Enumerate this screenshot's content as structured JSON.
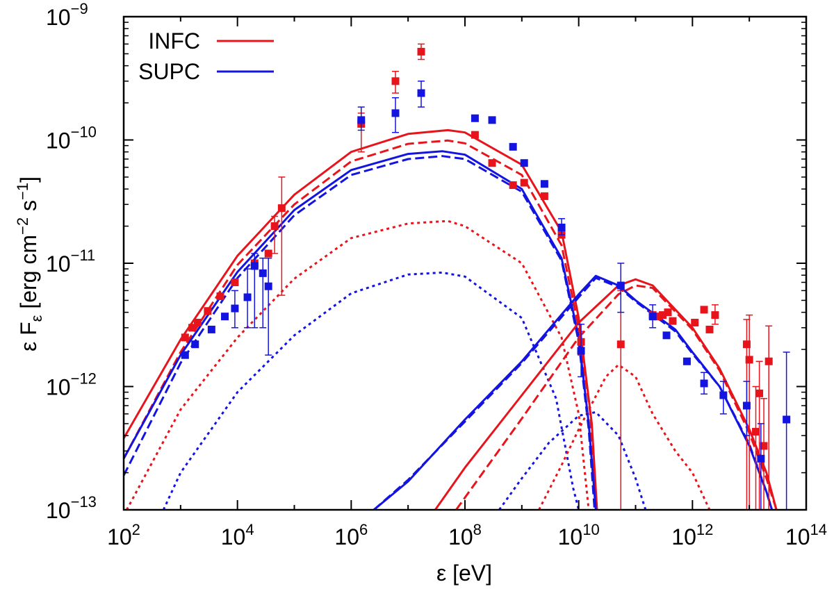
{
  "chart_data": {
    "type": "line",
    "title": "",
    "xlabel": "ε [eV]",
    "ylabel": "ε F_ε [erg cm^-2 s^-1]",
    "x_scale": "log",
    "y_scale": "log",
    "xlim": [
      100,
      100000000000000.0
    ],
    "ylim": [
      1e-13,
      1e-09
    ],
    "grid": false,
    "legend_position": "top-left",
    "x_ticks": [
      {
        "base": "10",
        "exp": "2"
      },
      {
        "base": "10",
        "exp": "4"
      },
      {
        "base": "10",
        "exp": "6"
      },
      {
        "base": "10",
        "exp": "8"
      },
      {
        "base": "10",
        "exp": "10"
      },
      {
        "base": "10",
        "exp": "12"
      },
      {
        "base": "10",
        "exp": "14"
      }
    ],
    "y_ticks": [
      {
        "base": "10",
        "exp": "−13"
      },
      {
        "base": "10",
        "exp": "−12"
      },
      {
        "base": "10",
        "exp": "−11"
      },
      {
        "base": "10",
        "exp": "−10"
      },
      {
        "base": "10",
        "exp": "−9"
      }
    ],
    "colors": {
      "INFC": "#e8141c",
      "SUPC": "#1414e0"
    },
    "series": [
      {
        "name": "INFC",
        "component": "total",
        "style": "solid",
        "color": "#e8141c",
        "points": [
          [
            100,
            3.8e-13
          ],
          [
            1000,
            2.4e-12
          ],
          [
            10000,
            1.15e-11
          ],
          [
            100000,
            3.6e-11
          ],
          [
            1000000,
            8e-11
          ],
          [
            10000000,
            1.12e-10
          ],
          [
            50000000,
            1.2e-10
          ],
          [
            100000000,
            1.15e-10
          ],
          [
            1000000000,
            6.3e-11
          ],
          [
            5000000000,
            1.8e-11
          ],
          [
            10000000000,
            3.6e-12
          ],
          [
            17000000000,
            5e-13
          ],
          [
            21000000000,
            1e-13
          ]
        ]
      },
      {
        "name": "INFC",
        "component": "dashed",
        "style": "dashed",
        "color": "#e8141c",
        "points": [
          [
            100,
            2.6e-13
          ],
          [
            1000,
            1.9e-12
          ],
          [
            10000,
            9.7e-12
          ],
          [
            100000,
            3e-11
          ],
          [
            1000000,
            6.7e-11
          ],
          [
            10000000,
            9.3e-11
          ],
          [
            50000000,
            9.9e-11
          ],
          [
            100000000,
            9.4e-11
          ],
          [
            1000000000,
            5.2e-11
          ],
          [
            5000000000,
            1.4e-11
          ],
          [
            10000000000,
            3e-12
          ],
          [
            16000000000,
            6e-13
          ],
          [
            20000000000,
            1e-13
          ]
        ]
      },
      {
        "name": "INFC",
        "component": "dotted",
        "style": "dotted",
        "color": "#e8141c",
        "points": [
          [
            100,
            9e-14
          ],
          [
            1000,
            6.5e-13
          ],
          [
            10000,
            2.5e-12
          ],
          [
            100000,
            7.5e-12
          ],
          [
            1000000,
            1.6e-11
          ],
          [
            10000000,
            2.1e-11
          ],
          [
            50000000,
            2.2e-11
          ],
          [
            100000000,
            2e-11
          ],
          [
            1000000000,
            1e-11
          ],
          [
            5000000000,
            2.5e-12
          ],
          [
            10000000000,
            6e-13
          ],
          [
            15000000000,
            1e-13
          ]
        ]
      },
      {
        "name": "SUPC",
        "component": "total",
        "style": "solid",
        "color": "#1414e0",
        "points": [
          [
            100,
            2.6e-13
          ],
          [
            1000,
            1.8e-12
          ],
          [
            10000,
            8.5e-12
          ],
          [
            100000,
            2.7e-11
          ],
          [
            1000000,
            5.7e-11
          ],
          [
            10000000,
            7.7e-11
          ],
          [
            40000000,
            8.1e-11
          ],
          [
            100000000,
            7.6e-11
          ],
          [
            1000000000,
            4e-11
          ],
          [
            5000000000,
            1.1e-11
          ],
          [
            10000000000,
            2.5e-12
          ],
          [
            15000000000,
            5e-13
          ],
          [
            20000000000,
            1e-13
          ]
        ]
      },
      {
        "name": "SUPC",
        "component": "dashed",
        "style": "dashed",
        "color": "#1414e0",
        "points": [
          [
            100,
            1.9e-13
          ],
          [
            1000,
            1.55e-12
          ],
          [
            10000,
            7.6e-12
          ],
          [
            100000,
            2.45e-11
          ],
          [
            1000000,
            5.2e-11
          ],
          [
            10000000,
            7e-11
          ],
          [
            40000000,
            7.4e-11
          ],
          [
            100000000,
            7e-11
          ],
          [
            1000000000,
            3.8e-11
          ],
          [
            5000000000,
            1.05e-11
          ],
          [
            10000000000,
            2.3e-12
          ],
          [
            15000000000,
            4.5e-13
          ],
          [
            19000000000,
            1e-13
          ]
        ]
      },
      {
        "name": "SUPC",
        "component": "dotted",
        "style": "dotted",
        "color": "#1414e0",
        "points": [
          [
            500,
            1e-13
          ],
          [
            1000,
            2e-13
          ],
          [
            10000,
            9e-13
          ],
          [
            100000,
            2.6e-12
          ],
          [
            1000000,
            5.7e-12
          ],
          [
            10000000,
            8.1e-12
          ],
          [
            40000000,
            8.4e-12
          ],
          [
            100000000,
            7.8e-12
          ],
          [
            1000000000,
            3.6e-12
          ],
          [
            4000000000,
            8e-13
          ],
          [
            8000000000,
            1.5e-13
          ],
          [
            10000000000,
            1e-13
          ]
        ]
      },
      {
        "name": "INFC",
        "component": "IC solid",
        "style": "solid",
        "color": "#e8141c",
        "points": [
          [
            30000000,
            1e-13
          ],
          [
            100000000,
            2.2e-13
          ],
          [
            1000000000,
            8.5e-13
          ],
          [
            10000000000,
            3.3e-12
          ],
          [
            50000000000,
            6.6e-12
          ],
          [
            100000000000,
            7.4e-12
          ],
          [
            200000000000,
            6.6e-12
          ],
          [
            1000000000000,
            3e-12
          ],
          [
            3000000000000,
            1.4e-12
          ],
          [
            10000000000000,
            4.5e-13
          ],
          [
            20000000000000,
            2e-13
          ],
          [
            30000000000000,
            1e-13
          ]
        ]
      },
      {
        "name": "INFC",
        "component": "IC dashed",
        "style": "dashed",
        "color": "#e8141c",
        "points": [
          [
            70000000,
            1e-13
          ],
          [
            1000000000,
            5.5e-13
          ],
          [
            10000000000,
            2.5e-12
          ],
          [
            50000000000,
            5.6e-12
          ],
          [
            100000000000,
            6.6e-12
          ],
          [
            200000000000,
            6.3e-12
          ],
          [
            1000000000000,
            2.9e-12
          ],
          [
            3000000000000,
            1.35e-12
          ],
          [
            10000000000000,
            4.2e-13
          ],
          [
            20000000000000,
            1.8e-13
          ],
          [
            30000000000000,
            1e-13
          ]
        ]
      },
      {
        "name": "INFC",
        "component": "IC dotted",
        "style": "dotted",
        "color": "#e8141c",
        "points": [
          [
            2000000000,
            1e-13
          ],
          [
            5000000000,
            2.3e-13
          ],
          [
            10000000000,
            4.5e-13
          ],
          [
            30000000000,
            1.2e-12
          ],
          [
            50000000000,
            1.5e-12
          ],
          [
            100000000000,
            1.2e-12
          ],
          [
            200000000000,
            6e-13
          ],
          [
            500000000000,
            3e-13
          ],
          [
            1000000000000,
            2e-13
          ],
          [
            2000000000000,
            1e-13
          ]
        ]
      },
      {
        "name": "SUPC",
        "component": "IC solid",
        "style": "solid",
        "color": "#1414e0",
        "points": [
          [
            2500000,
            1e-13
          ],
          [
            10000000,
            1.7e-13
          ],
          [
            100000000,
            5.4e-13
          ],
          [
            1000000000,
            1.6e-12
          ],
          [
            10000000000,
            5.6e-12
          ],
          [
            20000000000,
            7.9e-12
          ],
          [
            50000000000,
            6.6e-12
          ],
          [
            100000000000,
            5e-12
          ],
          [
            500000000000,
            2.9e-12
          ],
          [
            1000000000000,
            1.9e-12
          ],
          [
            3000000000000,
            1e-12
          ],
          [
            10000000000000,
            3.3e-13
          ],
          [
            20000000000000,
            1.4e-13
          ],
          [
            25000000000000,
            1e-13
          ]
        ]
      },
      {
        "name": "SUPC",
        "component": "IC dashed",
        "style": "dashed",
        "color": "#1414e0",
        "points": [
          [
            2500000,
            1e-13
          ],
          [
            10000000,
            1.75e-13
          ],
          [
            100000000,
            5.2e-13
          ],
          [
            1000000000,
            1.55e-12
          ],
          [
            10000000000,
            5.3e-12
          ],
          [
            20000000000,
            7.6e-12
          ],
          [
            50000000000,
            6.4e-12
          ],
          [
            100000000000,
            4.9e-12
          ],
          [
            500000000000,
            2.8e-12
          ],
          [
            1000000000000,
            1.85e-12
          ],
          [
            3000000000000,
            1e-12
          ],
          [
            10000000000000,
            3.4e-13
          ],
          [
            20000000000000,
            1.4e-13
          ],
          [
            25000000000000,
            1e-13
          ]
        ]
      },
      {
        "name": "SUPC",
        "component": "IC dotted",
        "style": "dotted",
        "color": "#1414e0",
        "points": [
          [
            400000000,
            1e-13
          ],
          [
            1000000000,
            1.8e-13
          ],
          [
            3000000000,
            3.5e-13
          ],
          [
            10000000000,
            5.8e-13
          ],
          [
            20000000000,
            6.2e-13
          ],
          [
            50000000000,
            4e-13
          ],
          [
            100000000000,
            1.8e-13
          ],
          [
            150000000000,
            1e-13
          ]
        ]
      }
    ],
    "data_points": [
      {
        "name": "INFC",
        "color": "#e8141c",
        "points": [
          {
            "x": 1200,
            "y": 2.5e-12
          },
          {
            "x": 1600,
            "y": 3e-12
          },
          {
            "x": 2000,
            "y": 3.3e-12
          },
          {
            "x": 3000,
            "y": 4.1e-12
          },
          {
            "x": 5000,
            "y": 5.4e-12
          },
          {
            "x": 9000,
            "y": 7e-12
          },
          {
            "x": 20000,
            "y": 1e-11
          },
          {
            "x": 35000,
            "y": 1.2e-11
          },
          {
            "x": 45000,
            "y": 2e-11,
            "lo": 1.2e-11,
            "hi": 2.4e-11
          },
          {
            "x": 60000,
            "y": 2.8e-11,
            "lo": 5.5e-12,
            "hi": 5e-11
          },
          {
            "x": 1500000,
            "y": 1.35e-10,
            "lo": 8e-11,
            "hi": 1.65e-10
          },
          {
            "x": 6000000,
            "y": 3e-10,
            "lo": 2.4e-10,
            "hi": 3.6e-10
          },
          {
            "x": 17000000,
            "y": 5.2e-10,
            "lo": 4.5e-10,
            "hi": 6e-10
          },
          {
            "x": 150000000,
            "y": 1.1e-10
          },
          {
            "x": 300000000,
            "y": 6.5e-11
          },
          {
            "x": 700000000,
            "y": 4.3e-11
          },
          {
            "x": 1100000000,
            "y": 4.5e-11
          },
          {
            "x": 2500000000,
            "y": 3.5e-11
          },
          {
            "x": 5000000000,
            "y": 1.7e-11
          },
          {
            "x": 11000000000,
            "y": 2.3e-12,
            "lo": 1.8e-12,
            "hi": 2.8e-12
          },
          {
            "x": 55000000000,
            "y": 2.2e-12,
            "lo": 1e-13,
            "hi": 6e-12
          },
          {
            "x": 200000000000,
            "y": 3.8e-12
          },
          {
            "x": 250000000000,
            "y": 3.7e-12
          },
          {
            "x": 300000000000,
            "y": 3.8e-12
          },
          {
            "x": 370000000000,
            "y": 4e-12
          },
          {
            "x": 450000000000,
            "y": 3.4e-12
          },
          {
            "x": 1100000000000,
            "y": 3.3e-12
          },
          {
            "x": 1600000000000,
            "y": 4.2e-12
          },
          {
            "x": 2000000000000,
            "y": 2.9e-12
          },
          {
            "x": 2500000000000,
            "y": 3.8e-12,
            "lo": 3.2e-12,
            "hi": 4.6e-12
          },
          {
            "x": 9000000000000,
            "y": 2.2e-12,
            "lo": 1e-13,
            "hi": 3.5e-12
          },
          {
            "x": 10000000000000,
            "y": 1.65e-12,
            "lo": 1e-13,
            "hi": 3.8e-12
          },
          {
            "x": 13000000000000,
            "y": 4.3e-13,
            "lo": 1e-13,
            "hi": 1e-12
          },
          {
            "x": 15000000000000,
            "y": 8.8e-13,
            "lo": 1e-13,
            "hi": 1.6e-12
          },
          {
            "x": 18000000000000,
            "y": 3.3e-13,
            "lo": 1e-13,
            "hi": 8e-13
          },
          {
            "x": 22000000000000,
            "y": 1.6e-12,
            "lo": 1e-13,
            "hi": 3.1e-12
          }
        ]
      },
      {
        "name": "SUPC",
        "color": "#1414e0",
        "points": [
          {
            "x": 1200,
            "y": 1.8e-12
          },
          {
            "x": 1800,
            "y": 2.2e-12
          },
          {
            "x": 3500,
            "y": 2.9e-12
          },
          {
            "x": 6000,
            "y": 3.7e-12
          },
          {
            "x": 9000,
            "y": 4.3e-12,
            "lo": 3e-12,
            "hi": 6e-12
          },
          {
            "x": 15000,
            "y": 5.3e-12,
            "lo": 3e-12,
            "hi": 9e-12
          },
          {
            "x": 20000,
            "y": 9.5e-12,
            "lo": 3e-12,
            "hi": 1.2e-11
          },
          {
            "x": 28000,
            "y": 8.3e-12,
            "lo": 3e-12,
            "hi": 1.1e-11
          },
          {
            "x": 35000,
            "y": 6.5e-12,
            "lo": 1.8e-12,
            "hi": 1.1e-11
          },
          {
            "x": 1500000,
            "y": 1.45e-10,
            "lo": 1.2e-10,
            "hi": 1.85e-10
          },
          {
            "x": 6000000,
            "y": 1.65e-10,
            "lo": 1.15e-10,
            "hi": 2.2e-10
          },
          {
            "x": 17000000,
            "y": 2.4e-10,
            "lo": 1.85e-10,
            "hi": 3e-10
          },
          {
            "x": 150000000,
            "y": 1.5e-10
          },
          {
            "x": 300000000,
            "y": 1.45e-10
          },
          {
            "x": 700000000,
            "y": 8.8e-11
          },
          {
            "x": 1100000000,
            "y": 6.5e-11
          },
          {
            "x": 2500000000,
            "y": 4.4e-11
          },
          {
            "x": 5000000000,
            "y": 1.95e-11,
            "lo": 1.7e-11,
            "hi": 2.3e-11
          },
          {
            "x": 11000000000,
            "y": 1.95e-12,
            "lo": 1.2e-12,
            "hi": 3.2e-12
          },
          {
            "x": 55000000000,
            "y": 6.6e-12,
            "lo": 4e-12,
            "hi": 1e-11
          },
          {
            "x": 200000000000,
            "y": 3.7e-12,
            "lo": 3e-12,
            "hi": 4.6e-12
          },
          {
            "x": 350000000000,
            "y": 2.6e-12
          },
          {
            "x": 800000000000,
            "y": 1.6e-12
          },
          {
            "x": 1600000000000,
            "y": 1.06e-12,
            "lo": 8.7e-13,
            "hi": 1.3e-12
          },
          {
            "x": 3500000000000,
            "y": 8.5e-13,
            "lo": 6e-13,
            "hi": 1.1e-12
          },
          {
            "x": 9000000000000,
            "y": 7e-13,
            "lo": 4e-13,
            "hi": 1.1e-12
          },
          {
            "x": 16000000000000,
            "y": 2.6e-13,
            "lo": 1e-13,
            "hi": 5e-13
          },
          {
            "x": 45000000000000,
            "y": 5.4e-13,
            "lo": 1e-13,
            "hi": 1.9e-12
          }
        ]
      }
    ],
    "legend": [
      {
        "label": "INFC",
        "color": "#e8141c"
      },
      {
        "label": "SUPC",
        "color": "#1414e0"
      }
    ]
  }
}
